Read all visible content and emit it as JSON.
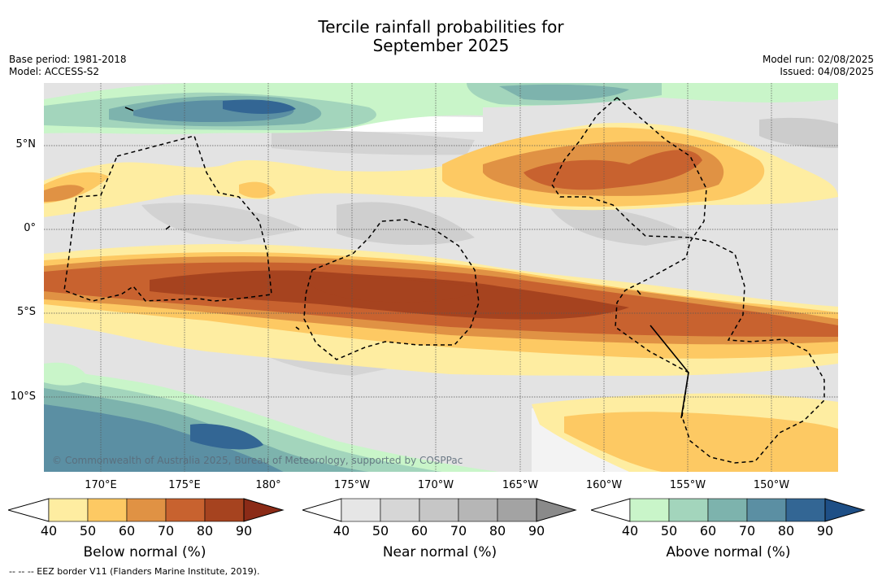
{
  "title_line1": "Tercile rainfall probabilities for",
  "title_line2": "September 2025",
  "base_period": "Base period: 1981-2018",
  "model": "Model: ACCESS-S2",
  "model_run": "Model run: 02/08/2025",
  "issued": "Issued: 04/08/2025",
  "lat_labels": [
    "5°N",
    "0°",
    "5°S",
    "10°S"
  ],
  "lon_labels": [
    "170°E",
    "175°E",
    "180°",
    "175°W",
    "170°W",
    "165°W",
    "160°W",
    "155°W",
    "150°W"
  ],
  "credit": "© Commonwealth of Australia 2025, Bureau of Meteorology, supported by COSPPac",
  "footer": "--  --  -- EEZ border V11 (Flanders Marine Institute, 2019).",
  "colorbars": [
    {
      "title": "Below normal (%)",
      "ticks": [
        "40",
        "50",
        "60",
        "70",
        "80",
        "90"
      ],
      "colors": [
        "#ffffff",
        "#feeda1",
        "#fdc963",
        "#e09244",
        "#c8622f",
        "#a6431f",
        "#8b2b17"
      ]
    },
    {
      "title": "Near normal (%)",
      "ticks": [
        "40",
        "50",
        "60",
        "70",
        "80",
        "90"
      ],
      "colors": [
        "#ffffff",
        "#e6e6e6",
        "#d6d6d6",
        "#c6c6c6",
        "#b6b6b6",
        "#a3a3a3",
        "#8a8a8a"
      ]
    },
    {
      "title": "Above normal (%)",
      "ticks": [
        "40",
        "50",
        "60",
        "70",
        "80",
        "90"
      ],
      "colors": [
        "#ffffff",
        "#c9f5c9",
        "#a3d5bc",
        "#7db3ad",
        "#5b8fa3",
        "#336694",
        "#1e4f86"
      ]
    }
  ]
}
